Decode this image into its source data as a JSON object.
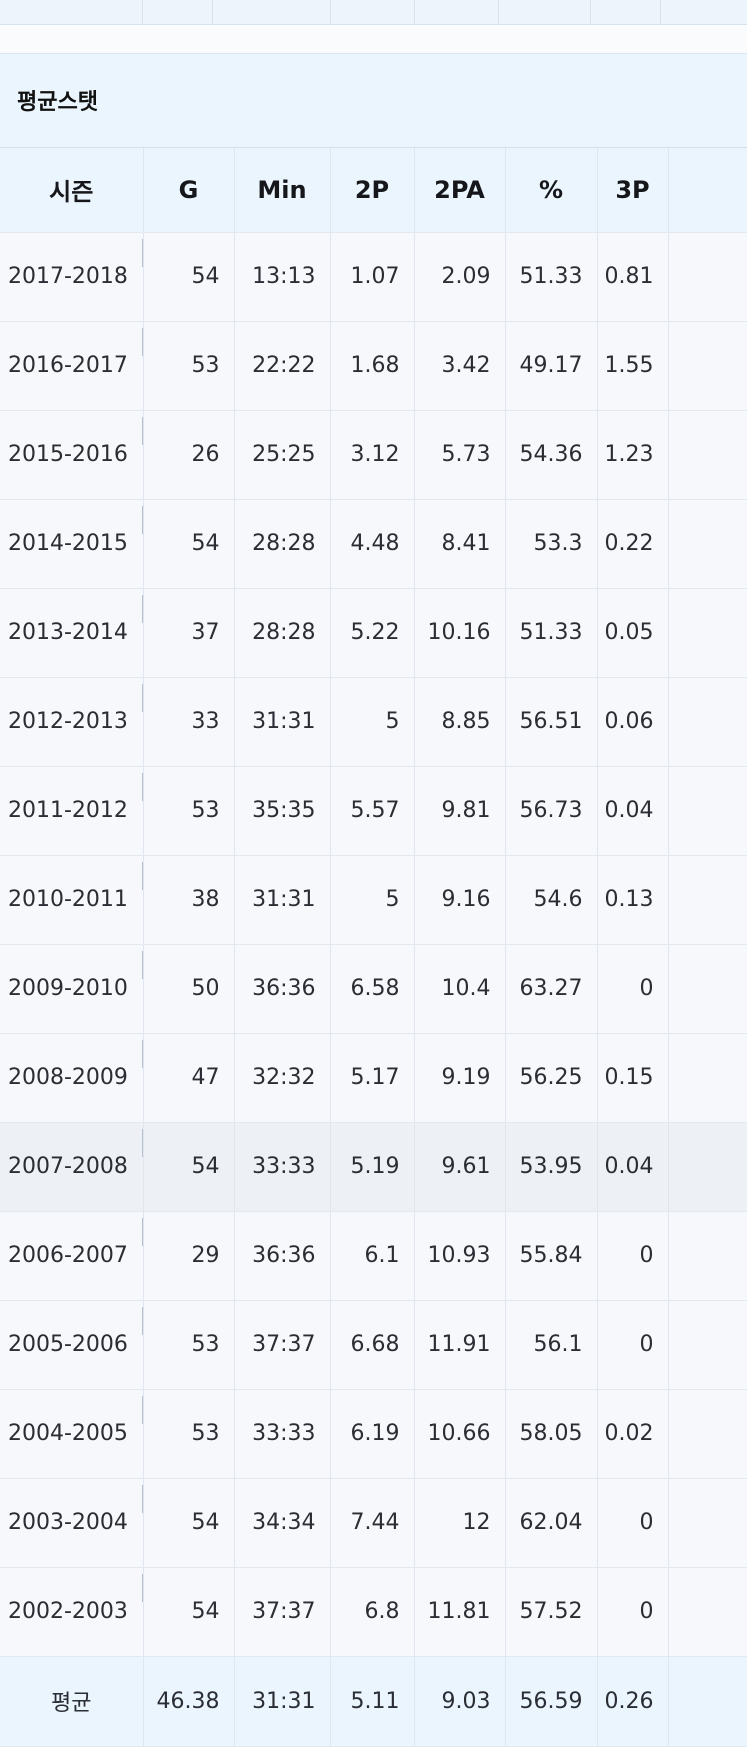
{
  "section": {
    "title": "평균스탯"
  },
  "table": {
    "columns": [
      "시즌",
      "G",
      "Min",
      "2P",
      "2PA",
      "%",
      "3P"
    ],
    "rows": [
      [
        "2017-2018",
        "54",
        "13:13",
        "1.07",
        "2.09",
        "51.33",
        "0.81"
      ],
      [
        "2016-2017",
        "53",
        "22:22",
        "1.68",
        "3.42",
        "49.17",
        "1.55"
      ],
      [
        "2015-2016",
        "26",
        "25:25",
        "3.12",
        "5.73",
        "54.36",
        "1.23"
      ],
      [
        "2014-2015",
        "54",
        "28:28",
        "4.48",
        "8.41",
        "53.3",
        "0.22"
      ],
      [
        "2013-2014",
        "37",
        "28:28",
        "5.22",
        "10.16",
        "51.33",
        "0.05"
      ],
      [
        "2012-2013",
        "33",
        "31:31",
        "5",
        "8.85",
        "56.51",
        "0.06"
      ],
      [
        "2011-2012",
        "53",
        "35:35",
        "5.57",
        "9.81",
        "56.73",
        "0.04"
      ],
      [
        "2010-2011",
        "38",
        "31:31",
        "5",
        "9.16",
        "54.6",
        "0.13"
      ],
      [
        "2009-2010",
        "50",
        "36:36",
        "6.58",
        "10.4",
        "63.27",
        "0"
      ],
      [
        "2008-2009",
        "47",
        "32:32",
        "5.17",
        "9.19",
        "56.25",
        "0.15"
      ],
      [
        "2007-2008",
        "54",
        "33:33",
        "5.19",
        "9.61",
        "53.95",
        "0.04"
      ],
      [
        "2006-2007",
        "29",
        "36:36",
        "6.1",
        "10.93",
        "55.84",
        "0"
      ],
      [
        "2005-2006",
        "53",
        "37:37",
        "6.68",
        "11.91",
        "56.1",
        "0"
      ],
      [
        "2004-2005",
        "53",
        "33:33",
        "6.19",
        "10.66",
        "58.05",
        "0.02"
      ],
      [
        "2003-2004",
        "54",
        "34:34",
        "7.44",
        "12",
        "62.04",
        "0"
      ],
      [
        "2002-2003",
        "54",
        "37:37",
        "6.8",
        "11.81",
        "57.52",
        "0"
      ]
    ],
    "average": [
      "평균",
      "46.38",
      "31:31",
      "5.11",
      "9.03",
      "56.59",
      "0.26"
    ],
    "highlighted_row": "2007-2008"
  },
  "colors": {
    "header_bg": "#ebf5fd",
    "row_bg": "#f7f8fb",
    "highlight_bg": "#edf0f4",
    "border": "#dfe6ef"
  }
}
